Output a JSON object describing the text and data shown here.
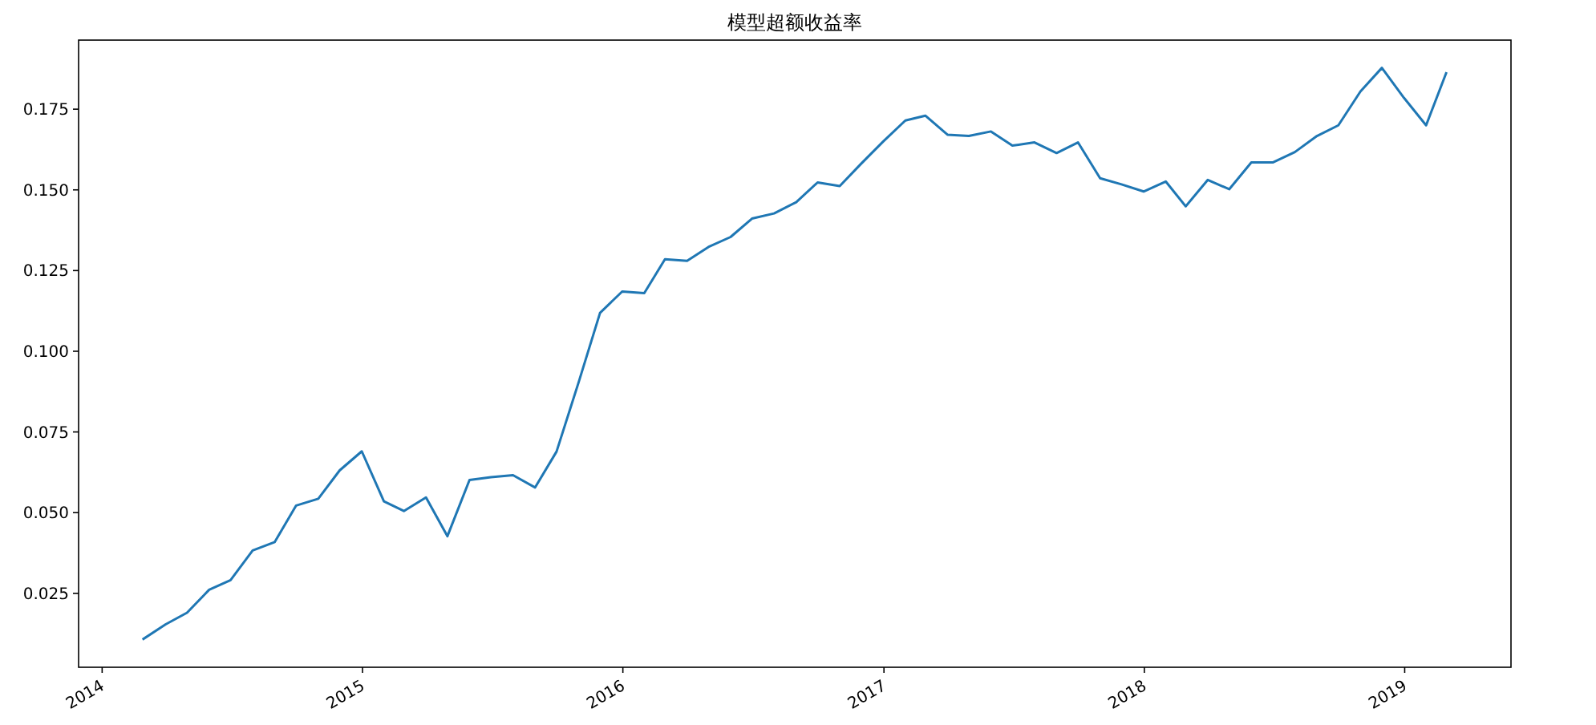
{
  "chart_data": {
    "type": "line",
    "title": "模型超额收益率",
    "x": [
      "2014-02-28",
      "2014-03-31",
      "2014-04-30",
      "2014-05-31",
      "2014-06-30",
      "2014-07-31",
      "2014-08-31",
      "2014-09-30",
      "2014-10-31",
      "2014-11-30",
      "2014-12-31",
      "2015-01-31",
      "2015-02-28",
      "2015-03-31",
      "2015-04-30",
      "2015-05-31",
      "2015-06-30",
      "2015-07-31",
      "2015-08-31",
      "2015-09-30",
      "2015-10-31",
      "2015-11-30",
      "2015-12-31",
      "2016-01-31",
      "2016-02-29",
      "2016-03-31",
      "2016-04-30",
      "2016-05-31",
      "2016-06-30",
      "2016-07-31",
      "2016-08-31",
      "2016-09-30",
      "2016-10-31",
      "2016-11-30",
      "2016-12-31",
      "2017-01-31",
      "2017-02-28",
      "2017-03-31",
      "2017-04-30",
      "2017-05-31",
      "2017-06-30",
      "2017-07-31",
      "2017-08-31",
      "2017-09-30",
      "2017-10-31",
      "2017-11-30",
      "2017-12-31",
      "2018-01-31",
      "2018-02-28",
      "2018-03-31",
      "2018-04-30",
      "2018-05-31",
      "2018-06-30",
      "2018-07-31",
      "2018-08-31",
      "2018-09-30",
      "2018-10-31",
      "2018-11-30",
      "2018-12-31",
      "2019-01-31",
      "2019-02-28"
    ],
    "series": [
      {
        "color": "#1f77b4",
        "values": [
          0.0109,
          0.0154,
          0.019,
          0.0261,
          0.0291,
          0.0383,
          0.0409,
          0.0522,
          0.0543,
          0.0631,
          0.069,
          0.0535,
          0.0505,
          0.0547,
          0.0427,
          0.0601,
          0.061,
          0.0616,
          0.0578,
          0.0689,
          0.0904,
          0.1119,
          0.1185,
          0.118,
          0.1285,
          0.128,
          0.1323,
          0.1354,
          0.1411,
          0.1427,
          0.1462,
          0.1523,
          0.1512,
          0.1581,
          0.165,
          0.1715,
          0.173,
          0.1671,
          0.1667,
          0.1681,
          0.1637,
          0.1647,
          0.1614,
          0.1647,
          0.1536,
          0.1517,
          0.1495,
          0.1526,
          0.1449,
          0.1531,
          0.1502,
          0.1585,
          0.1585,
          0.1617,
          0.1667,
          0.17,
          0.1805,
          0.1878,
          0.1785,
          0.17,
          0.1861
        ]
      }
    ],
    "xlim": [
      "2013-11-29",
      "2019-05-30"
    ],
    "xticks": [
      {
        "value": "2014-01-01",
        "label": "2014"
      },
      {
        "value": "2015-01-01",
        "label": "2015"
      },
      {
        "value": "2016-01-01",
        "label": "2016"
      },
      {
        "value": "2017-01-01",
        "label": "2017"
      },
      {
        "value": "2018-01-01",
        "label": "2018"
      },
      {
        "value": "2019-01-01",
        "label": "2019"
      }
    ],
    "ylim": [
      0.0021,
      0.1964
    ],
    "yticks": [
      0.025,
      {
        "value": 0.05,
        "label": "0.050"
      },
      0.075,
      {
        "value": 0.1,
        "label": "0.100"
      },
      0.125,
      {
        "value": 0.15,
        "label": "0.150"
      },
      0.175
    ],
    "grid": false,
    "marker": "none",
    "line_style": "solid"
  }
}
